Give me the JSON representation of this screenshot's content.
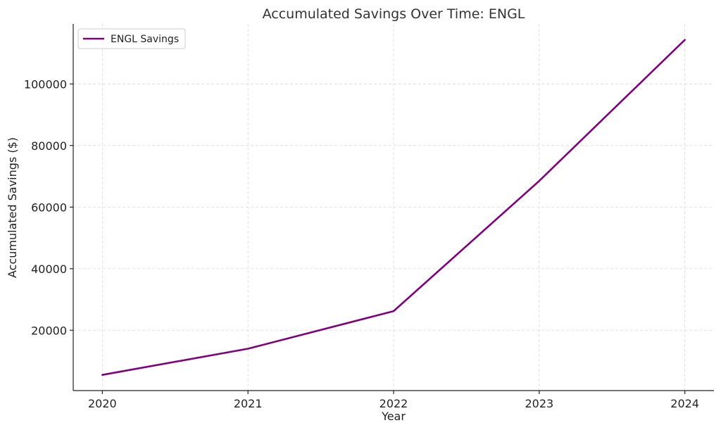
{
  "chart_data": {
    "type": "line",
    "title": "Accumulated Savings Over Time: ENGL",
    "xlabel": "Year",
    "ylabel": "Accumulated Savings ($)",
    "x": [
      2020,
      2021,
      2022,
      2023,
      2024
    ],
    "x_tick_labels": [
      "2020",
      "2021",
      "2022",
      "2023",
      "2024"
    ],
    "y_ticks": [
      20000,
      40000,
      60000,
      80000,
      100000
    ],
    "y_tick_labels": [
      "20000",
      "40000",
      "60000",
      "80000",
      "100000"
    ],
    "xlim": [
      2019.8,
      2024.2
    ],
    "ylim": [
      400,
      119500
    ],
    "grid": true,
    "legend_position": "top-left",
    "series": [
      {
        "name": "ENGL Savings",
        "color": "#800080",
        "values": [
          5500,
          14000,
          26200,
          68500,
          114300
        ]
      }
    ]
  }
}
